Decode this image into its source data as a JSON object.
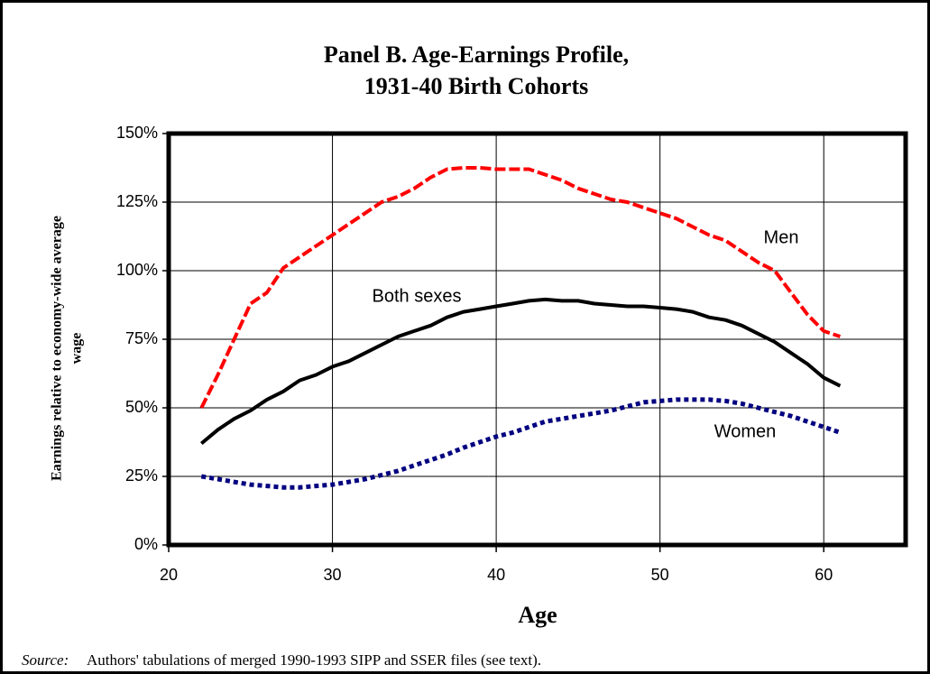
{
  "chart_data": {
    "type": "line",
    "title": [
      "Panel B. Age-Earnings Profile,",
      "1931-40 Birth Cohorts"
    ],
    "x_label": "Age",
    "y_label": [
      "Earnings relative to economy-wide average",
      "wage"
    ],
    "source": {
      "label": "Source:",
      "text": "Authors' tabulations of merged 1990-1993 SIPP and SSER files (see text)."
    },
    "x": [
      22,
      23,
      24,
      25,
      26,
      27,
      28,
      29,
      30,
      31,
      32,
      33,
      34,
      35,
      36,
      37,
      38,
      39,
      40,
      41,
      42,
      43,
      44,
      45,
      46,
      47,
      48,
      49,
      50,
      51,
      52,
      53,
      54,
      55,
      56,
      57,
      58,
      59,
      60,
      61
    ],
    "series": [
      {
        "name": "Men",
        "color": "#ff0000",
        "values": [
          50,
          62,
          75,
          88,
          92,
          101,
          105,
          109,
          113,
          117,
          121,
          125,
          127,
          130,
          134,
          137,
          137.5,
          137.5,
          137,
          137,
          137,
          135,
          133,
          130,
          128,
          126,
          125,
          123,
          121,
          119,
          116,
          113,
          111,
          107,
          103,
          100,
          92,
          84,
          78,
          76
        ]
      },
      {
        "name": "Both sexes",
        "color": "#000000",
        "values": [
          37,
          42,
          46,
          49,
          53,
          56,
          60,
          62,
          65,
          67,
          70,
          73,
          76,
          78,
          80,
          83,
          85,
          86,
          87,
          88,
          89,
          89.5,
          89,
          89,
          88,
          87.5,
          87,
          87,
          86.5,
          86,
          85,
          83,
          82,
          80,
          77,
          74,
          70,
          66,
          61,
          58
        ]
      },
      {
        "name": "Women",
        "color": "#000080",
        "values": [
          25,
          24,
          23,
          22,
          21.5,
          21,
          21,
          21.5,
          22,
          23,
          24,
          25.5,
          27,
          29,
          31,
          33,
          35.5,
          37.5,
          39.5,
          41,
          43,
          45,
          46,
          47,
          48,
          49,
          50.5,
          52,
          52.5,
          53,
          53,
          53,
          52.5,
          51.5,
          50,
          48.5,
          47,
          45,
          43,
          41
        ]
      }
    ],
    "xlim": [
      20,
      65
    ],
    "xticks": [
      20,
      30,
      40,
      50,
      60
    ],
    "ylim": [
      0,
      150
    ],
    "yticks": [
      {
        "value": 0,
        "label": "0%"
      },
      {
        "value": 25,
        "label": "25%"
      },
      {
        "value": 50,
        "label": "50%"
      },
      {
        "value": 75,
        "label": "75%"
      },
      {
        "value": 100,
        "label": "100%"
      },
      {
        "value": 125,
        "label": "125%"
      },
      {
        "value": 150,
        "label": "150%"
      }
    ],
    "grid": true
  }
}
